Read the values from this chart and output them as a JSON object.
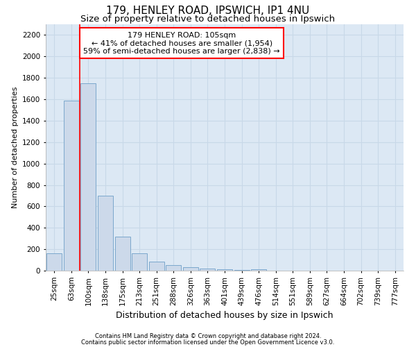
{
  "title1": "179, HENLEY ROAD, IPSWICH, IP1 4NU",
  "title2": "Size of property relative to detached houses in Ipswich",
  "xlabel": "Distribution of detached houses by size in Ipswich",
  "ylabel": "Number of detached properties",
  "footer1": "Contains HM Land Registry data © Crown copyright and database right 2024.",
  "footer2": "Contains public sector information licensed under the Open Government Licence v3.0.",
  "annotation_line1": "179 HENLEY ROAD: 105sqm",
  "annotation_line2": "← 41% of detached houses are smaller (1,954)",
  "annotation_line3": "59% of semi-detached houses are larger (2,838) →",
  "bar_labels": [
    "25sqm",
    "63sqm",
    "100sqm",
    "138sqm",
    "175sqm",
    "213sqm",
    "251sqm",
    "288sqm",
    "326sqm",
    "363sqm",
    "401sqm",
    "439sqm",
    "476sqm",
    "514sqm",
    "551sqm",
    "589sqm",
    "627sqm",
    "664sqm",
    "702sqm",
    "739sqm",
    "777sqm"
  ],
  "bar_values": [
    160,
    1590,
    1750,
    700,
    320,
    160,
    85,
    50,
    30,
    20,
    15,
    8,
    15,
    0,
    0,
    0,
    0,
    0,
    0,
    0,
    0
  ],
  "bar_color": "#ccd9ea",
  "bar_edge_color": "#7ba7cc",
  "grid_color": "#c8d8e8",
  "background_color": "#dce8f4",
  "red_line_x": 1.5,
  "ylim": [
    0,
    2300
  ],
  "yticks": [
    0,
    200,
    400,
    600,
    800,
    1000,
    1200,
    1400,
    1600,
    1800,
    2000,
    2200
  ],
  "title1_fontsize": 11,
  "title2_fontsize": 9.5,
  "xlabel_fontsize": 9,
  "ylabel_fontsize": 8,
  "tick_fontsize": 7.5,
  "annotation_fontsize": 8,
  "footer_fontsize": 6
}
